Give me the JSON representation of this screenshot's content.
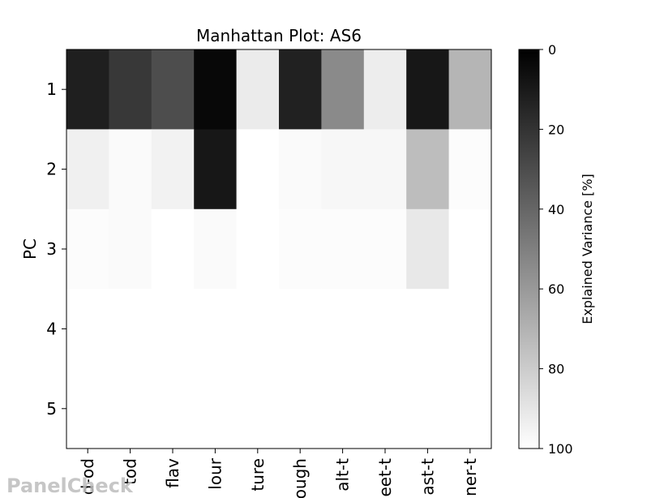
{
  "chart_data": {
    "type": "heatmap",
    "title": "Manhattan Plot: AS6",
    "ylabel": "PC",
    "xlabel": "",
    "x_tick_labels": [
      "d-od",
      "tod",
      "flav",
      "lour",
      "ture",
      "ough",
      "alt-t",
      "eet-t",
      "ast-t",
      "ner-t"
    ],
    "y_tick_labels": [
      "1",
      "2",
      "3",
      "4",
      "5"
    ],
    "colorbar": {
      "label": "Explained Variance [%]",
      "range": [
        0,
        100
      ],
      "ticks": [
        "0",
        "20",
        "40",
        "60",
        "80",
        "100"
      ],
      "colormap": "gray",
      "low_color": "#000000",
      "high_color": "#ffffff"
    },
    "values": [
      [
        12,
        22,
        30,
        3,
        92,
        13,
        54,
        93,
        9,
        71
      ],
      [
        94,
        98,
        95,
        9,
        100,
        98,
        97,
        97,
        74,
        99
      ],
      [
        99,
        98,
        100,
        98,
        100,
        99,
        99,
        99,
        91,
        100
      ],
      [
        100,
        100,
        100,
        100,
        100,
        100,
        100,
        100,
        100,
        100
      ],
      [
        100,
        100,
        100,
        100,
        100,
        100,
        100,
        100,
        100,
        100
      ]
    ]
  },
  "watermark": {
    "text": "PanelCheck"
  }
}
